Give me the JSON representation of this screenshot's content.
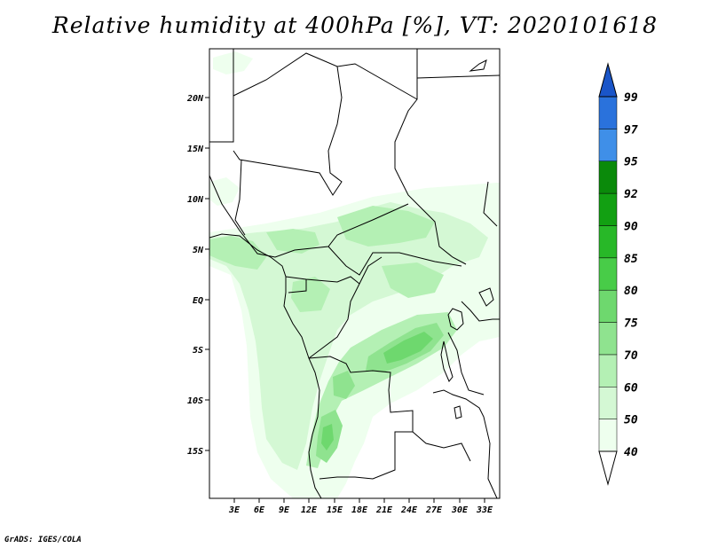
{
  "title": "Relative humidity at 400hPa [%], VT: 2020101618",
  "credit": "GrADS: IGES/COLA",
  "map": {
    "lat_labels": [
      "20N",
      "15N",
      "10N",
      "5N",
      "EQ",
      "5S",
      "10S",
      "15S"
    ],
    "lon_labels": [
      "3E",
      "6E",
      "9E",
      "12E",
      "15E",
      "18E",
      "21E",
      "24E",
      "27E",
      "30E",
      "33E"
    ]
  },
  "colorbar": {
    "levels": [
      "40",
      "50",
      "60",
      "70",
      "75",
      "80",
      "85",
      "90",
      "92",
      "95",
      "97",
      "99"
    ],
    "colors": [
      "#eeffee",
      "#d4f8d4",
      "#b4f0b4",
      "#8fe38f",
      "#6ed86e",
      "#48cc48",
      "#28b828",
      "#12a012",
      "#0a8a0a",
      "#3f8fe8",
      "#2a72dc",
      "#1a55c8"
    ]
  }
}
